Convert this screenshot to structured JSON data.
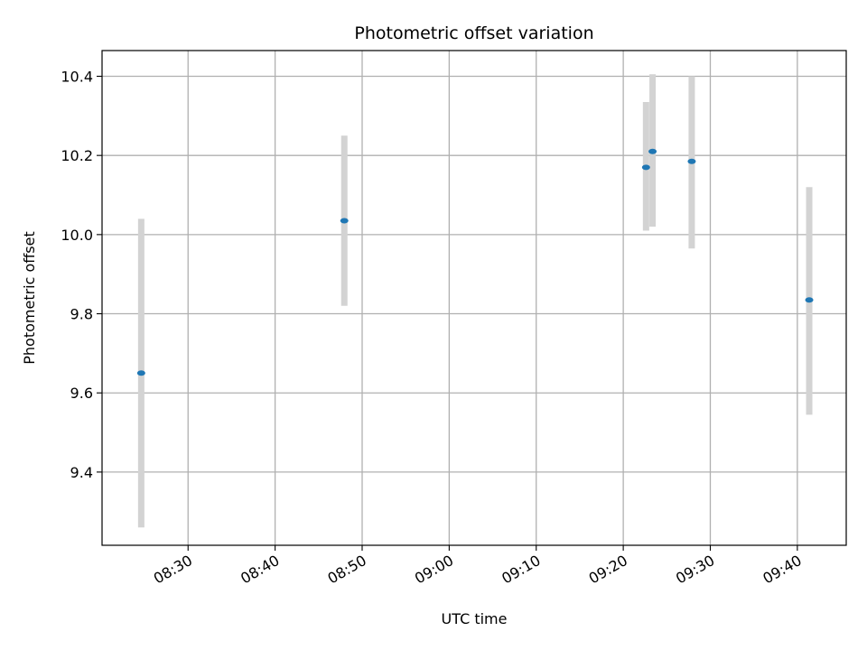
{
  "chart_data": {
    "type": "scatter",
    "title": "Photometric offset variation",
    "xlabel": "UTC time",
    "ylabel": "Photometric offset",
    "x_ticks": [
      "08:30",
      "08:40",
      "08:50",
      "09:00",
      "09:10",
      "09:20",
      "09:30",
      "09:40"
    ],
    "y_ticks": [
      "9.4",
      "9.6",
      "9.8",
      "10.0",
      "10.2",
      "10.4"
    ],
    "xlim": [
      "08:20:07",
      "09:45:37"
    ],
    "ylim": [
      9.215,
      10.465
    ],
    "grid": true,
    "points": [
      {
        "x": "08:24:37",
        "y": 9.65,
        "err_low": 9.26,
        "err_high": 10.04
      },
      {
        "x": "08:47:57",
        "y": 10.035,
        "err_low": 9.82,
        "err_high": 10.25
      },
      {
        "x": "09:22:37",
        "y": 10.17,
        "err_low": 10.01,
        "err_high": 10.335
      },
      {
        "x": "09:23:22",
        "y": 10.21,
        "err_low": 10.02,
        "err_high": 10.405
      },
      {
        "x": "09:27:52",
        "y": 10.185,
        "err_low": 9.965,
        "err_high": 10.4
      },
      {
        "x": "09:41:22",
        "y": 9.835,
        "err_low": 9.545,
        "err_high": 10.12
      }
    ],
    "colors": {
      "point": "#1f77b4",
      "errorbar": "#d3d3d3",
      "grid": "#b0b0b0",
      "axes": "#000000"
    }
  }
}
